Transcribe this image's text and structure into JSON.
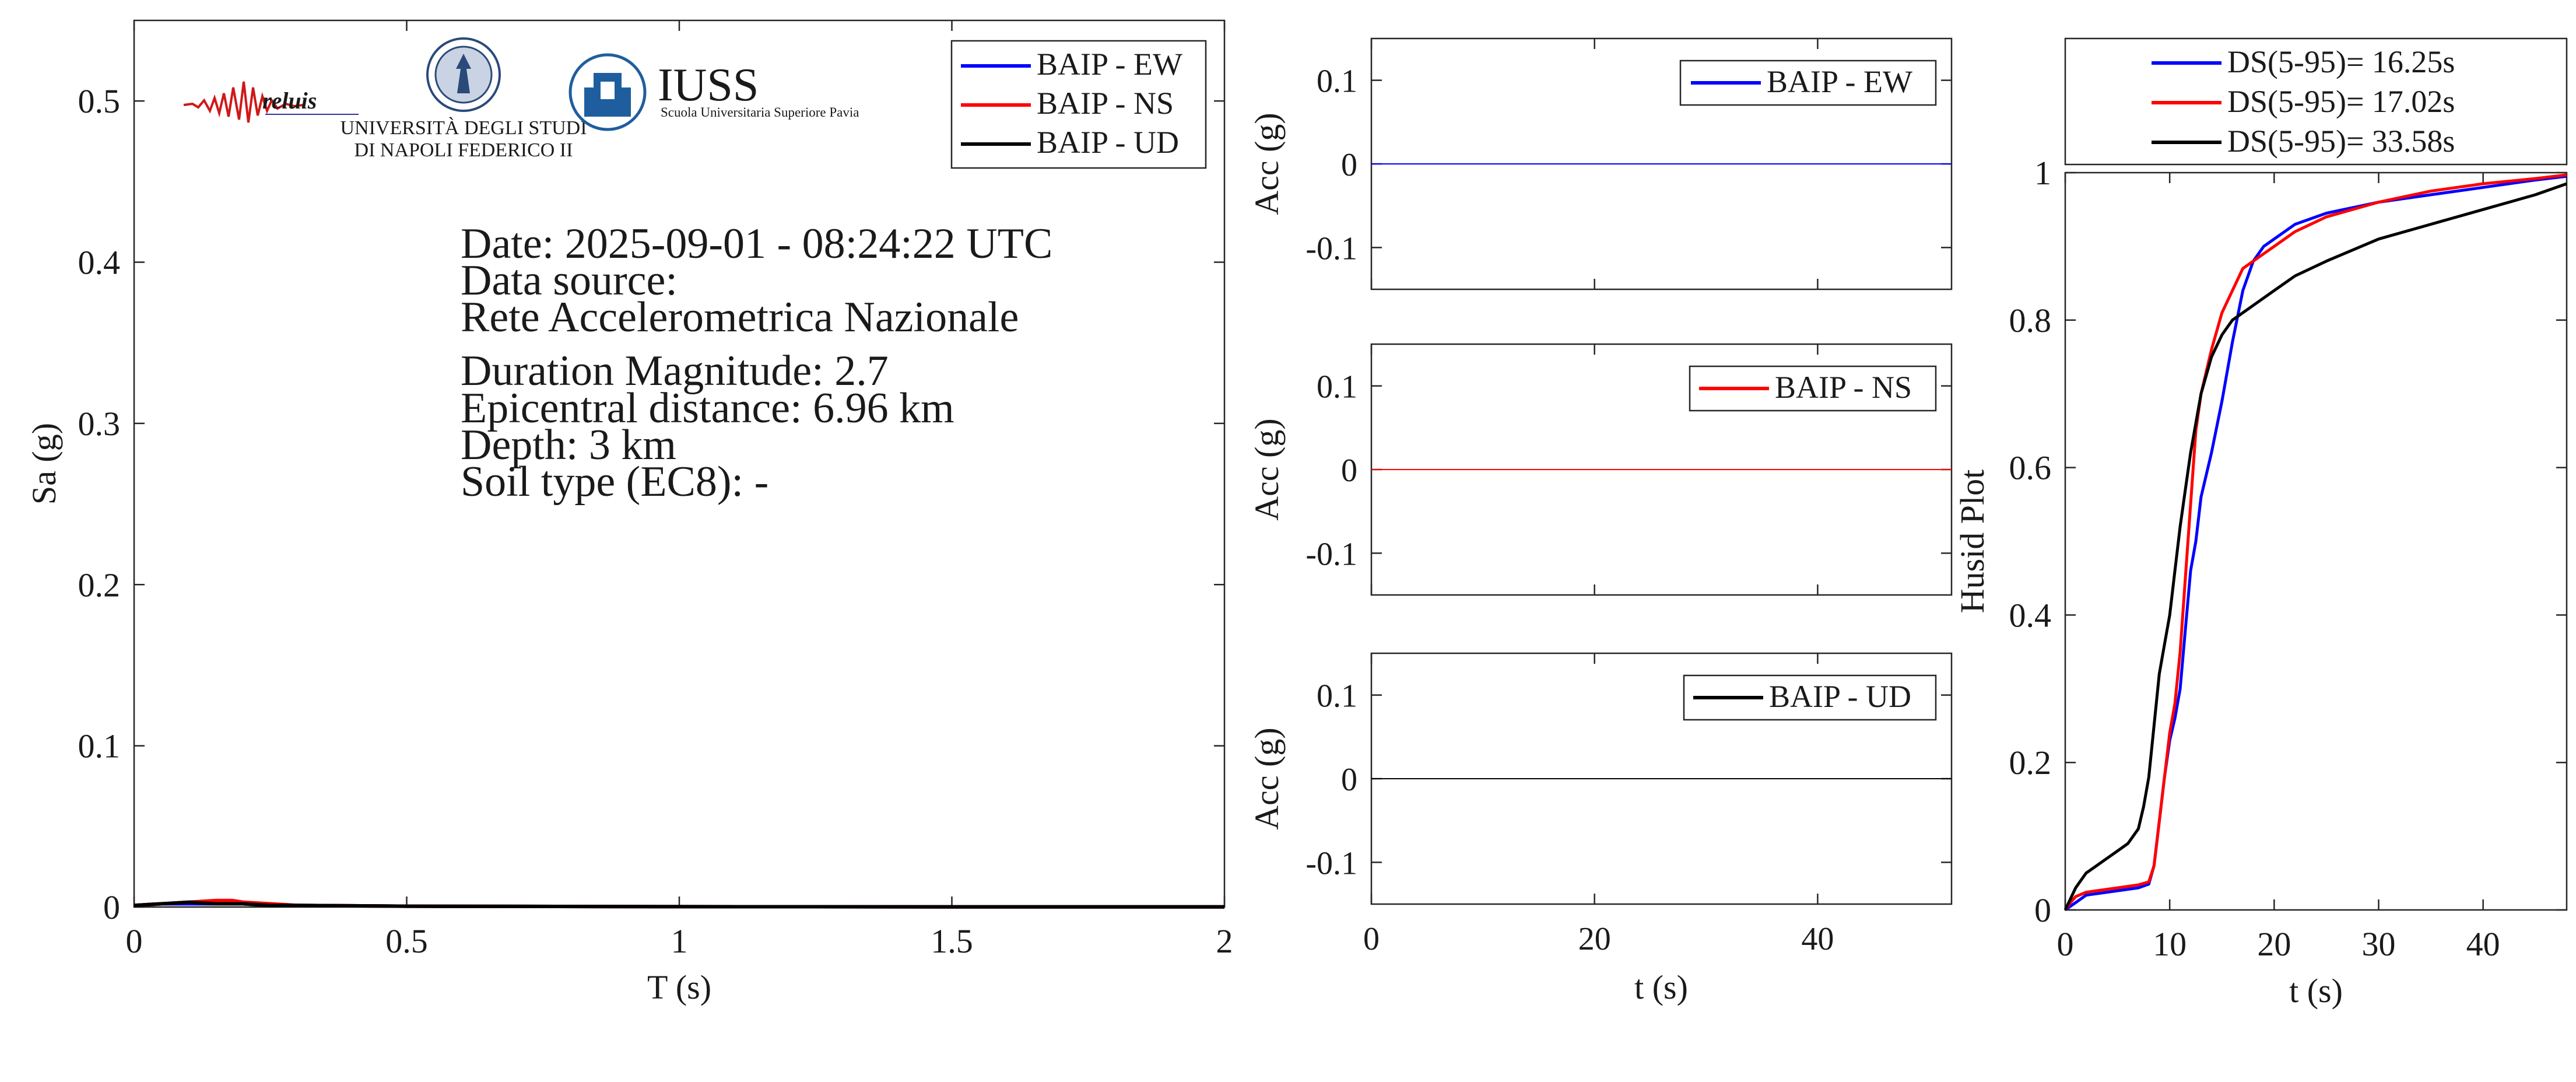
{
  "logos": {
    "reluis": "reluis",
    "unina_line1": "UNIVERSITÀ DEGLI STUDI",
    "unina_line2": "DI NAPOLI FEDERICO II",
    "iuss_name": "IUSS",
    "iuss_sub": "Scuola Universitaria Superiore Pavia"
  },
  "info": {
    "date": "Date: 2025-09-01 - 08:24:22 UTC",
    "source_label": "Data source:",
    "source": "Rete Accelerometrica Nazionale",
    "magnitude": "Duration Magnitude: 2.7",
    "distance": "Epicentral distance: 6.96 km",
    "depth": "Depth: 3 km",
    "soil": "Soil type (EC8): -"
  },
  "colors": {
    "ew": "#0000ff",
    "ns": "#ff0000",
    "ud": "#000000",
    "axis": "#262626"
  },
  "chart_data": [
    {
      "id": "spectrum",
      "type": "line",
      "xlabel": "T (s)",
      "ylabel": "Sa (g)",
      "xlim": [
        0,
        2
      ],
      "ylim": [
        0,
        0.55
      ],
      "xticks": [
        0,
        0.5,
        1,
        1.5,
        2
      ],
      "xticklabels": [
        "0",
        "0.5",
        "1",
        "1.5",
        "2"
      ],
      "yticks": [
        0,
        0.1,
        0.2,
        0.3,
        0.4,
        0.5
      ],
      "yticklabels": [
        "0",
        "0.1",
        "0.2",
        "0.3",
        "0.4",
        "0.5"
      ],
      "legend_position": "top-right",
      "series": [
        {
          "name": "BAIP - EW",
          "color": "#0000ff",
          "x": [
            0,
            0.05,
            0.1,
            0.15,
            0.18,
            0.2,
            0.25,
            0.3,
            0.5,
            1,
            1.5,
            2
          ],
          "y": [
            0.001,
            0.002,
            0.002,
            0.002,
            0.002,
            0.002,
            0.001,
            0.001,
            0.0005,
            0.0002,
            0.0001,
            0.0001
          ]
        },
        {
          "name": "BAIP - NS",
          "color": "#ff0000",
          "x": [
            0,
            0.05,
            0.1,
            0.15,
            0.18,
            0.2,
            0.25,
            0.3,
            0.5,
            1,
            1.5,
            2
          ],
          "y": [
            0.001,
            0.002,
            0.003,
            0.004,
            0.004,
            0.003,
            0.002,
            0.001,
            0.0005,
            0.0002,
            0.0001,
            0.0001
          ]
        },
        {
          "name": "BAIP - UD",
          "color": "#000000",
          "x": [
            0,
            0.05,
            0.1,
            0.15,
            0.18,
            0.2,
            0.25,
            0.3,
            0.5,
            1,
            1.5,
            2
          ],
          "y": [
            0.001,
            0.002,
            0.003,
            0.002,
            0.002,
            0.002,
            0.001,
            0.001,
            0.0005,
            0.0002,
            0.0001,
            0.0001
          ]
        }
      ]
    },
    {
      "id": "acc_ew",
      "type": "line",
      "ylabel": "Acc (g)",
      "xlabel": "",
      "xlim": [
        0,
        52
      ],
      "ylim": [
        -0.15,
        0.15
      ],
      "xticks": [
        0,
        20,
        40
      ],
      "xticklabels": [],
      "yticks": [
        -0.1,
        0,
        0.1
      ],
      "yticklabels": [
        "-0.1",
        "0",
        "0.1"
      ],
      "legend_position": "top-right",
      "series": [
        {
          "name": "BAIP - EW",
          "color": "#0000ff",
          "x": [
            0,
            52
          ],
          "y": [
            0,
            0
          ]
        }
      ]
    },
    {
      "id": "acc_ns",
      "type": "line",
      "ylabel": "Acc (g)",
      "xlabel": "",
      "xlim": [
        0,
        52
      ],
      "ylim": [
        -0.15,
        0.15
      ],
      "xticks": [
        0,
        20,
        40
      ],
      "xticklabels": [],
      "yticks": [
        -0.1,
        0,
        0.1
      ],
      "yticklabels": [
        "-0.1",
        "0",
        "0.1"
      ],
      "legend_position": "top-right",
      "series": [
        {
          "name": "BAIP - NS",
          "color": "#ff0000",
          "x": [
            0,
            52
          ],
          "y": [
            0,
            0
          ]
        }
      ]
    },
    {
      "id": "acc_ud",
      "type": "line",
      "ylabel": "Acc (g)",
      "xlabel": "t (s)",
      "xlim": [
        0,
        52
      ],
      "ylim": [
        -0.15,
        0.15
      ],
      "xticks": [
        0,
        20,
        40
      ],
      "xticklabels": [
        "0",
        "20",
        "40"
      ],
      "yticks": [
        -0.1,
        0,
        0.1
      ],
      "yticklabels": [
        "-0.1",
        "0",
        "0.1"
      ],
      "legend_position": "top-right",
      "series": [
        {
          "name": "BAIP - UD",
          "color": "#000000",
          "x": [
            0,
            52
          ],
          "y": [
            0,
            0
          ]
        }
      ]
    },
    {
      "id": "husid",
      "type": "line",
      "ylabel": "Husid Plot",
      "xlabel": "t (s)",
      "xlim": [
        0,
        48
      ],
      "ylim": [
        0,
        1
      ],
      "xticks": [
        0,
        10,
        20,
        30,
        40
      ],
      "xticklabels": [
        "0",
        "10",
        "20",
        "30",
        "40"
      ],
      "yticks": [
        0,
        0.2,
        0.4,
        0.6,
        0.8,
        1
      ],
      "yticklabels": [
        "0",
        "0.2",
        "0.4",
        "0.6",
        "0.8",
        "1"
      ],
      "legend_position": "above",
      "series": [
        {
          "name": "DS(5-95)= 16.25s",
          "color": "#0000ff",
          "x": [
            0,
            0.5,
            1,
            2,
            3,
            4,
            5,
            6,
            7,
            8,
            8.5,
            9,
            9.5,
            10,
            10.5,
            11,
            11.5,
            12,
            12.5,
            13,
            14,
            15,
            16,
            17,
            18,
            19,
            20,
            22,
            25,
            30,
            35,
            40,
            45,
            48
          ],
          "y": [
            0,
            0.005,
            0.01,
            0.02,
            0.022,
            0.024,
            0.026,
            0.028,
            0.03,
            0.035,
            0.06,
            0.12,
            0.18,
            0.23,
            0.26,
            0.3,
            0.38,
            0.46,
            0.5,
            0.56,
            0.62,
            0.69,
            0.77,
            0.84,
            0.88,
            0.9,
            0.91,
            0.93,
            0.945,
            0.96,
            0.97,
            0.98,
            0.99,
            0.995
          ]
        },
        {
          "name": "DS(5-95)= 17.02s",
          "color": "#ff0000",
          "x": [
            0,
            0.5,
            1,
            2,
            3,
            4,
            5,
            6,
            7,
            8,
            8.5,
            9,
            9.5,
            10,
            10.5,
            11,
            11.5,
            12,
            12.5,
            13,
            14,
            15,
            16,
            17,
            18,
            19,
            20,
            22,
            25,
            30,
            35,
            40,
            45,
            48
          ],
          "y": [
            0,
            0.01,
            0.018,
            0.024,
            0.026,
            0.028,
            0.03,
            0.032,
            0.034,
            0.038,
            0.06,
            0.12,
            0.18,
            0.24,
            0.28,
            0.35,
            0.45,
            0.55,
            0.65,
            0.7,
            0.76,
            0.81,
            0.84,
            0.87,
            0.88,
            0.89,
            0.9,
            0.92,
            0.94,
            0.96,
            0.975,
            0.985,
            0.992,
            0.997
          ]
        },
        {
          "name": "DS(5-95)= 33.58s",
          "color": "#000000",
          "x": [
            0,
            0.5,
            1,
            2,
            3,
            4,
            5,
            6,
            7,
            7.5,
            8,
            8.5,
            9,
            9.5,
            10,
            10.5,
            11,
            11.5,
            12,
            13,
            14,
            15,
            16,
            17,
            18,
            20,
            22,
            25,
            30,
            35,
            40,
            45,
            48
          ],
          "y": [
            0,
            0.015,
            0.03,
            0.05,
            0.06,
            0.07,
            0.08,
            0.09,
            0.11,
            0.14,
            0.18,
            0.25,
            0.32,
            0.36,
            0.4,
            0.46,
            0.52,
            0.57,
            0.62,
            0.7,
            0.75,
            0.78,
            0.8,
            0.81,
            0.82,
            0.84,
            0.86,
            0.88,
            0.91,
            0.93,
            0.95,
            0.97,
            0.985
          ]
        }
      ]
    }
  ]
}
